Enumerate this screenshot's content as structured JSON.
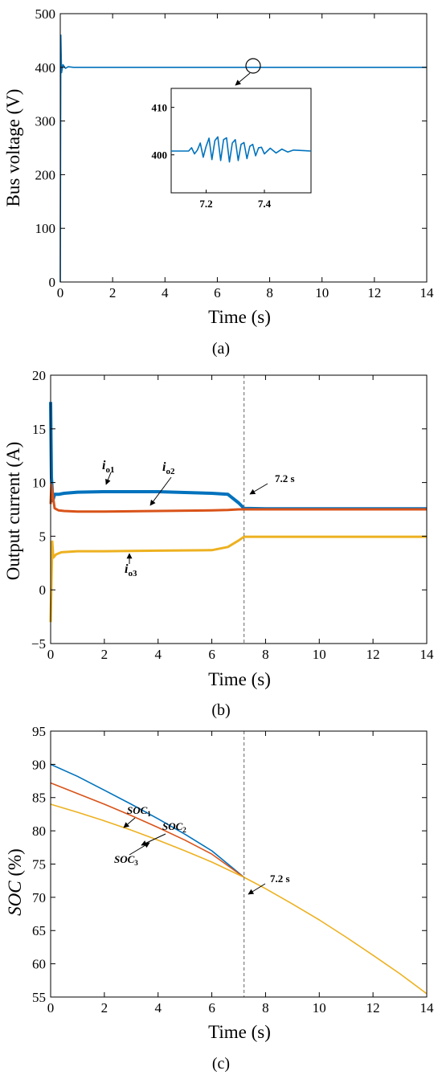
{
  "chart_data": [
    {
      "panel": "a",
      "caption": "(a)",
      "type": "line",
      "xlabel": "Time (s)",
      "ylabel": "Bus voltage (V)",
      "xlim": [
        0,
        14
      ],
      "ylim": [
        0,
        500
      ],
      "xticks": [
        0,
        2,
        4,
        6,
        8,
        10,
        12,
        14
      ],
      "yticks": [
        0,
        100,
        200,
        300,
        400,
        500
      ],
      "grid": false,
      "series": [
        {
          "color": "#0072BD",
          "x": [
            0,
            0.02,
            0.05,
            0.1,
            0.2,
            0.3,
            0.5,
            1,
            2,
            4,
            6,
            7.2,
            8,
            10,
            12,
            14
          ],
          "y": [
            0,
            460,
            390,
            405,
            398,
            401,
            400,
            400,
            400,
            400,
            400,
            400,
            400,
            400,
            400,
            400
          ]
        }
      ],
      "inset": {
        "xticks": [
          7.2,
          7.4
        ],
        "yticks": [
          400,
          410
        ],
        "xlim": [
          7.08,
          7.56
        ],
        "ylim": [
          392,
          414
        ],
        "x": [
          7.08,
          7.14,
          7.15,
          7.16,
          7.17,
          7.18,
          7.19,
          7.2,
          7.21,
          7.22,
          7.23,
          7.24,
          7.25,
          7.26,
          7.27,
          7.28,
          7.29,
          7.3,
          7.31,
          7.32,
          7.33,
          7.34,
          7.35,
          7.36,
          7.37,
          7.38,
          7.39,
          7.4,
          7.42,
          7.44,
          7.46,
          7.48,
          7.5,
          7.56
        ],
        "y": [
          400.8,
          400.8,
          401.5,
          400.2,
          401,
          402.5,
          399.5,
          401.8,
          403.5,
          399,
          403,
          403.8,
          398.8,
          403.2,
          403.6,
          398.5,
          402.5,
          403.2,
          398.8,
          402.2,
          402.6,
          399.2,
          401.8,
          402.2,
          399.8,
          401.5,
          401.6,
          400.2,
          401.4,
          400.4,
          401.2,
          400.6,
          401,
          400.8
        ]
      },
      "marker_label": ""
    },
    {
      "panel": "b",
      "caption": "(b)",
      "type": "line",
      "xlabel": "Time (s)",
      "ylabel": "Output current (A)",
      "xlim": [
        0,
        14
      ],
      "ylim": [
        -5,
        20
      ],
      "xticks": [
        0,
        2,
        4,
        6,
        8,
        10,
        12,
        14
      ],
      "yticks": [
        -5,
        0,
        5,
        10,
        15,
        20
      ],
      "grid": false,
      "vline": 7.2,
      "series": [
        {
          "name": "io1",
          "color": "#0072BD",
          "x": [
            0,
            0.03,
            0.08,
            0.15,
            0.3,
            0.5,
            1,
            2,
            4,
            6,
            6.6,
            7.0,
            7.2,
            8,
            10,
            12,
            14
          ],
          "y": [
            17.5,
            10.5,
            8.3,
            8.9,
            8.9,
            9.0,
            9.1,
            9.15,
            9.15,
            9.0,
            8.9,
            8.1,
            7.6,
            7.55,
            7.55,
            7.55,
            7.55
          ]
        },
        {
          "name": "io2",
          "color": "#D95319",
          "x": [
            0,
            0.03,
            0.08,
            0.15,
            0.3,
            0.5,
            1,
            2,
            4,
            6,
            6.6,
            7.0,
            7.2,
            8,
            10,
            12,
            14
          ],
          "y": [
            8.0,
            9.8,
            8.8,
            7.6,
            7.4,
            7.35,
            7.3,
            7.3,
            7.35,
            7.4,
            7.45,
            7.5,
            7.5,
            7.5,
            7.5,
            7.5,
            7.5
          ]
        },
        {
          "name": "io3",
          "color": "#EDB120",
          "x": [
            0,
            0.03,
            0.06,
            0.1,
            0.2,
            0.4,
            1,
            2,
            4,
            6,
            6.6,
            7.0,
            7.2,
            8,
            10,
            12,
            14
          ],
          "y": [
            -3,
            0.5,
            4.5,
            3.0,
            3.3,
            3.5,
            3.6,
            3.6,
            3.65,
            3.7,
            4.0,
            4.6,
            4.95,
            4.95,
            4.95,
            4.95,
            4.95
          ]
        }
      ],
      "labels": {
        "io1_main": "i",
        "io1_sub": "o1",
        "io2_main": "i",
        "io2_sub": "o2",
        "io3_main": "i",
        "io3_sub": "o3",
        "time_mark": "7.2 s"
      }
    },
    {
      "panel": "c",
      "caption": "(c)",
      "type": "line",
      "xlabel": "Time (s)",
      "ylabel_main": "SOC",
      "ylabel_rest": " (%)",
      "xlim": [
        0,
        14
      ],
      "ylim": [
        55,
        95
      ],
      "xticks": [
        0,
        2,
        4,
        6,
        8,
        10,
        12,
        14
      ],
      "yticks": [
        55,
        60,
        65,
        70,
        75,
        80,
        85,
        90,
        95
      ],
      "grid": false,
      "vline": 7.2,
      "series": [
        {
          "name": "SOC1",
          "color": "#0072BD",
          "x": [
            0,
            1,
            2,
            3,
            4,
            5,
            6,
            7.2
          ],
          "y": [
            90,
            88.2,
            86.1,
            84.0,
            81.8,
            79.5,
            77.0,
            73.0
          ]
        },
        {
          "name": "SOC2",
          "color": "#D95319",
          "x": [
            0,
            1,
            2,
            3,
            4,
            5,
            6,
            7.2
          ],
          "y": [
            87.2,
            85.6,
            84.0,
            82.3,
            80.5,
            78.6,
            76.5,
            73.0
          ]
        },
        {
          "name": "SOC3",
          "color": "#EDB120",
          "x": [
            0,
            1,
            2,
            3,
            4,
            5,
            6,
            7.2,
            8,
            9,
            10,
            11,
            12,
            13,
            14
          ],
          "y": [
            84,
            82.8,
            81.5,
            80.1,
            78.6,
            77.0,
            75.3,
            73.0,
            71.3,
            69.0,
            66.6,
            64.0,
            61.3,
            58.5,
            55.5
          ]
        }
      ],
      "labels": {
        "soc1_main": "SOC",
        "soc1_sub": "1",
        "soc2_main": "SOC",
        "soc2_sub": "2",
        "soc3_main": "SOC",
        "soc3_sub": "3",
        "time_mark": "7.2 s"
      }
    }
  ]
}
